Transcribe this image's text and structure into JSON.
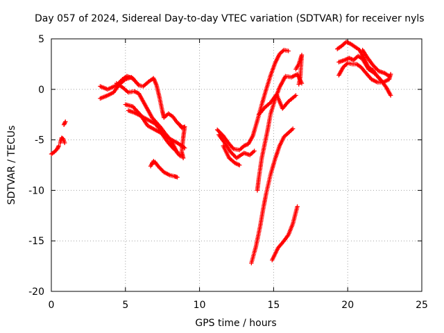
{
  "chart_data": {
    "type": "scatter",
    "title": "Day 057 of 2024, Sidereal Day-to-day VTEC variation (SDTVAR) for receiver nyls",
    "xlabel": "GPS time / hours",
    "ylabel": "SDTVAR / TECUs",
    "xlim": [
      0,
      25
    ],
    "ylim": [
      -20,
      5
    ],
    "xticks": [
      "0",
      "5",
      "10",
      "15",
      "20",
      "25"
    ],
    "yticks": [
      "5",
      "0",
      "-5",
      "-10",
      "-15",
      "-20"
    ],
    "grid": true,
    "marker": "+",
    "color": "#ff0000",
    "segments": [
      [
        [
          0.0,
          -6.4
        ],
        [
          0.2,
          -6.2
        ],
        [
          0.4,
          -5.9
        ],
        [
          0.5,
          -5.6
        ]
      ],
      [
        [
          0.6,
          -5.3
        ],
        [
          0.7,
          -4.8
        ],
        [
          0.8,
          -4.9
        ],
        [
          0.9,
          -5.3
        ]
      ],
      [
        [
          0.85,
          -3.5
        ],
        [
          0.95,
          -3.2
        ]
      ],
      [
        [
          3.3,
          -0.9
        ],
        [
          3.8,
          -0.6
        ],
        [
          4.2,
          -0.3
        ],
        [
          4.6,
          0.5
        ],
        [
          5.0,
          1.0
        ],
        [
          5.4,
          1.2
        ],
        [
          5.8,
          0.6
        ]
      ],
      [
        [
          3.3,
          0.3
        ],
        [
          3.8,
          0.0
        ],
        [
          4.4,
          0.4
        ],
        [
          4.8,
          1.0
        ],
        [
          5.1,
          1.3
        ],
        [
          5.5,
          1.1
        ],
        [
          5.9,
          0.4
        ],
        [
          6.2,
          0.3
        ],
        [
          6.6,
          0.8
        ],
        [
          6.9,
          1.1
        ],
        [
          7.1,
          0.4
        ],
        [
          7.3,
          -0.8
        ],
        [
          7.5,
          -2.2
        ],
        [
          7.6,
          -2.8
        ],
        [
          7.9,
          -2.4
        ],
        [
          8.2,
          -2.7
        ],
        [
          8.5,
          -3.3
        ],
        [
          8.8,
          -3.7
        ]
      ],
      [
        [
          4.4,
          0.6
        ],
        [
          4.8,
          0.2
        ],
        [
          5.2,
          -0.3
        ],
        [
          5.6,
          -0.2
        ],
        [
          5.9,
          -0.4
        ],
        [
          6.2,
          -1.2
        ],
        [
          6.5,
          -2.0
        ],
        [
          6.8,
          -2.8
        ],
        [
          7.1,
          -3.3
        ],
        [
          7.4,
          -3.8
        ],
        [
          7.7,
          -4.4
        ],
        [
          8.0,
          -4.9
        ],
        [
          8.3,
          -5.7
        ],
        [
          8.5,
          -6.3
        ],
        [
          8.7,
          -6.6
        ]
      ],
      [
        [
          5.0,
          -1.5
        ],
        [
          5.5,
          -1.7
        ],
        [
          6.0,
          -2.5
        ],
        [
          6.5,
          -3.6
        ],
        [
          7.0,
          -4.0
        ],
        [
          7.5,
          -4.4
        ],
        [
          8.0,
          -4.9
        ],
        [
          8.5,
          -5.3
        ],
        [
          8.8,
          -5.6
        ],
        [
          9.0,
          -5.8
        ]
      ],
      [
        [
          5.2,
          -2.1
        ],
        [
          5.6,
          -2.3
        ],
        [
          6.0,
          -2.6
        ],
        [
          6.5,
          -3.0
        ],
        [
          7.0,
          -3.4
        ],
        [
          7.3,
          -3.9
        ],
        [
          7.6,
          -4.7
        ],
        [
          7.9,
          -5.3
        ],
        [
          8.2,
          -5.8
        ],
        [
          8.5,
          -6.2
        ]
      ],
      [
        [
          6.8,
          -7.3
        ],
        [
          7.0,
          -7.2
        ],
        [
          7.2,
          -7.6
        ],
        [
          7.6,
          -8.2
        ],
        [
          8.0,
          -8.5
        ],
        [
          8.3,
          -8.6
        ],
        [
          8.5,
          -8.7
        ]
      ],
      [
        [
          6.7,
          -7.6
        ],
        [
          6.9,
          -7.1
        ]
      ],
      [
        [
          8.6,
          -3.4
        ],
        [
          8.8,
          -3.8
        ],
        [
          9.0,
          -3.7
        ],
        [
          8.9,
          -4.8
        ],
        [
          8.8,
          -6.2
        ],
        [
          8.9,
          -6.8
        ]
      ],
      [
        [
          11.2,
          -4.0
        ],
        [
          11.6,
          -4.6
        ],
        [
          12.0,
          -5.4
        ],
        [
          12.3,
          -5.9
        ],
        [
          12.7,
          -6.0
        ],
        [
          13.0,
          -5.6
        ],
        [
          13.3,
          -5.4
        ],
        [
          13.6,
          -4.6
        ],
        [
          13.9,
          -3.1
        ],
        [
          14.2,
          -1.5
        ],
        [
          14.5,
          0.0
        ],
        [
          14.8,
          1.4
        ],
        [
          15.1,
          2.6
        ],
        [
          15.4,
          3.5
        ],
        [
          15.7,
          3.9
        ],
        [
          16.0,
          3.8
        ]
      ],
      [
        [
          11.3,
          -4.5
        ],
        [
          11.7,
          -5.3
        ],
        [
          12.1,
          -6.2
        ],
        [
          12.5,
          -6.8
        ],
        [
          13.0,
          -6.3
        ],
        [
          13.4,
          -6.5
        ],
        [
          13.7,
          -6.1
        ]
      ],
      [
        [
          11.6,
          -5.6
        ],
        [
          12.0,
          -6.8
        ],
        [
          12.4,
          -7.3
        ],
        [
          12.7,
          -7.5
        ]
      ],
      [
        [
          13.9,
          -10.0
        ],
        [
          14.0,
          -8.8
        ],
        [
          14.2,
          -6.8
        ],
        [
          14.4,
          -5.4
        ],
        [
          14.6,
          -4.0
        ],
        [
          14.8,
          -2.4
        ],
        [
          15.1,
          -1.0
        ],
        [
          15.4,
          0.2
        ],
        [
          15.8,
          1.3
        ],
        [
          16.2,
          1.2
        ],
        [
          16.6,
          1.5
        ],
        [
          16.9,
          0.6
        ]
      ],
      [
        [
          13.5,
          -17.2
        ],
        [
          13.8,
          -15.6
        ],
        [
          14.1,
          -13.5
        ],
        [
          14.3,
          -11.8
        ],
        [
          14.5,
          -10.3
        ],
        [
          14.8,
          -8.4
        ],
        [
          15.1,
          -6.9
        ],
        [
          15.4,
          -5.6
        ],
        [
          15.7,
          -4.7
        ],
        [
          16.0,
          -4.3
        ],
        [
          16.3,
          -3.9
        ]
      ],
      [
        [
          14.0,
          -2.5
        ],
        [
          14.4,
          -1.8
        ],
        [
          14.8,
          -1.3
        ],
        [
          15.2,
          -0.5
        ],
        [
          15.6,
          -1.9
        ],
        [
          16.0,
          -1.2
        ],
        [
          16.5,
          -0.6
        ]
      ],
      [
        [
          14.9,
          -16.9
        ],
        [
          15.3,
          -15.7
        ],
        [
          15.7,
          -15.0
        ],
        [
          16.0,
          -14.4
        ],
        [
          16.3,
          -13.3
        ],
        [
          16.6,
          -11.6
        ]
      ],
      [
        [
          16.5,
          2.0
        ],
        [
          16.7,
          2.5
        ],
        [
          16.9,
          3.4
        ],
        [
          16.8,
          1.2
        ],
        [
          16.7,
          0.5
        ]
      ],
      [
        [
          19.4,
          2.7
        ],
        [
          19.8,
          2.9
        ],
        [
          20.1,
          3.1
        ],
        [
          20.4,
          2.9
        ],
        [
          20.7,
          3.3
        ],
        [
          21.0,
          3.0
        ],
        [
          21.4,
          2.0
        ],
        [
          21.8,
          1.6
        ],
        [
          22.2,
          1.0
        ],
        [
          22.6,
          0.2
        ],
        [
          22.9,
          -0.6
        ]
      ],
      [
        [
          19.3,
          4.0
        ],
        [
          19.6,
          4.3
        ],
        [
          19.9,
          4.7
        ],
        [
          20.2,
          4.5
        ],
        [
          20.5,
          4.2
        ],
        [
          20.8,
          3.9
        ],
        [
          21.1,
          3.1
        ],
        [
          21.4,
          2.2
        ],
        [
          21.7,
          1.9
        ],
        [
          22.0,
          1.3
        ],
        [
          22.3,
          0.8
        ]
      ],
      [
        [
          19.4,
          1.4
        ],
        [
          19.7,
          2.2
        ],
        [
          20.0,
          2.6
        ],
        [
          20.3,
          2.5
        ],
        [
          20.6,
          2.5
        ],
        [
          20.9,
          2.2
        ],
        [
          21.3,
          1.5
        ],
        [
          21.6,
          1.0
        ],
        [
          22.0,
          0.7
        ],
        [
          22.4,
          0.7
        ],
        [
          22.8,
          1.0
        ],
        [
          22.9,
          1.5
        ]
      ],
      [
        [
          21.0,
          3.9
        ],
        [
          21.3,
          3.2
        ],
        [
          21.7,
          2.4
        ],
        [
          22.1,
          1.8
        ],
        [
          22.5,
          1.6
        ],
        [
          22.8,
          1.3
        ]
      ]
    ]
  }
}
